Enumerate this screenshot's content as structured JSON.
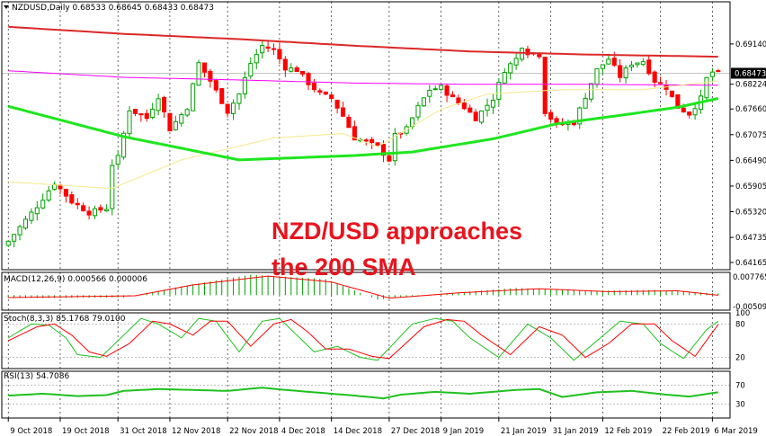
{
  "chart_data": [
    {
      "type": "candlestick",
      "header": "NZDUSD,Daily  0.68533 0.68645 0.68433 0.68473",
      "annotation": [
        "NZD/USD approaches",
        "the 200 SMA"
      ],
      "ylim": [
        0.64,
        0.701
      ],
      "y_ticks": [
        "0.69140",
        "0.68224",
        "0.67660",
        "0.67075",
        "0.66490",
        "0.65905",
        "0.65320",
        "0.64735",
        "0.64165"
      ],
      "current_price": "0.68473",
      "x_tick_labels": [
        "9 Oct 2018",
        "19 Oct 2018",
        "31 Oct 2018",
        "12 Nov 2018",
        "22 Nov 2018",
        "4 Dec 2018",
        "14 Dec 2018",
        "27 Dec 2018",
        "9 Jan 2019",
        "21 Jan 2019",
        "31 Jan 2019",
        "12 Feb 2019",
        "22 Feb 2019",
        "6 Mar 2019"
      ],
      "close_anchors": [
        [
          0,
          0.6465
        ],
        [
          5,
          0.6545
        ],
        [
          8,
          0.6598
        ],
        [
          11,
          0.6555
        ],
        [
          14,
          0.653
        ],
        [
          17,
          0.654
        ],
        [
          18,
          0.664
        ],
        [
          19,
          0.6655
        ],
        [
          21,
          0.6765
        ],
        [
          24,
          0.6745
        ],
        [
          26,
          0.6795
        ],
        [
          28,
          0.672
        ],
        [
          31,
          0.677
        ],
        [
          33,
          0.687
        ],
        [
          35,
          0.683
        ],
        [
          38,
          0.676
        ],
        [
          40,
          0.68
        ],
        [
          42,
          0.687
        ],
        [
          44,
          0.691
        ],
        [
          46,
          0.69
        ],
        [
          48,
          0.686
        ],
        [
          50,
          0.6855
        ],
        [
          52,
          0.6825
        ],
        [
          54,
          0.68
        ],
        [
          56,
          0.679
        ],
        [
          58,
          0.675
        ],
        [
          60,
          0.67
        ],
        [
          62,
          0.669
        ],
        [
          64,
          0.668
        ],
        [
          66,
          0.665
        ],
        [
          67,
          0.6705
        ],
        [
          69,
          0.672
        ],
        [
          71,
          0.677
        ],
        [
          73,
          0.681
        ],
        [
          75,
          0.6815
        ],
        [
          77,
          0.679
        ],
        [
          79,
          0.677
        ],
        [
          81,
          0.6745
        ],
        [
          84,
          0.679
        ],
        [
          86,
          0.6855
        ],
        [
          88,
          0.688
        ],
        [
          89,
          0.691
        ],
        [
          90,
          0.6895
        ],
        [
          92,
          0.689
        ],
        [
          93,
          0.676
        ],
        [
          95,
          0.673
        ],
        [
          98,
          0.6735
        ],
        [
          100,
          0.6795
        ],
        [
          102,
          0.6855
        ],
        [
          104,
          0.688
        ],
        [
          106,
          0.684
        ],
        [
          108,
          0.687
        ],
        [
          110,
          0.6875
        ],
        [
          112,
          0.683
        ],
        [
          114,
          0.6815
        ],
        [
          116,
          0.677
        ],
        [
          118,
          0.6755
        ],
        [
          120,
          0.679
        ],
        [
          121,
          0.6835
        ],
        [
          122,
          0.685
        ],
        [
          123,
          0.6847
        ]
      ],
      "sma_200": [
        [
          0,
          0.6853
        ],
        [
          20,
          0.6838
        ],
        [
          40,
          0.6832
        ],
        [
          60,
          0.6825
        ],
        [
          80,
          0.6822
        ],
        [
          100,
          0.6822
        ],
        [
          123,
          0.682
        ]
      ],
      "sma_100": [
        [
          0,
          0.6953
        ],
        [
          20,
          0.6937
        ],
        [
          40,
          0.6925
        ],
        [
          60,
          0.691
        ],
        [
          80,
          0.6897
        ],
        [
          100,
          0.689
        ],
        [
          123,
          0.6885
        ]
      ],
      "sma_50": [
        [
          0,
          0.66
        ],
        [
          18,
          0.6585
        ],
        [
          30,
          0.665
        ],
        [
          46,
          0.67
        ],
        [
          58,
          0.671
        ],
        [
          64,
          0.668
        ],
        [
          75,
          0.6765
        ],
        [
          83,
          0.68
        ],
        [
          96,
          0.681
        ],
        [
          110,
          0.681
        ],
        [
          123,
          0.683
        ]
      ],
      "sma_20": [
        [
          0,
          0.6772
        ],
        [
          20,
          0.6703
        ],
        [
          40,
          0.665
        ],
        [
          60,
          0.666
        ],
        [
          70,
          0.6668
        ],
        [
          84,
          0.6698
        ],
        [
          95,
          0.6732
        ],
        [
          108,
          0.6755
        ],
        [
          116,
          0.677
        ],
        [
          123,
          0.679
        ]
      ],
      "colors": {
        "bull": "#00a000",
        "bear": "#ff0000",
        "sma_200": "#ff00ff",
        "sma_100": "#dc2828",
        "sma_50": "#f5e88c",
        "sma_20": "#1ee61e"
      }
    },
    {
      "type": "macd",
      "header": "MACD(12,26,9) 0.000566 0.000006",
      "y_ticks": [
        "0.007765",
        "-0.005092"
      ],
      "histogram_anchors": [
        [
          0,
          -0.001
        ],
        [
          20,
          -0.0008
        ],
        [
          30,
          0.003
        ],
        [
          42,
          0.007
        ],
        [
          55,
          0.0055
        ],
        [
          64,
          -0.0015
        ],
        [
          75,
          0.0005
        ],
        [
          88,
          0.0025
        ],
        [
          100,
          0.0015
        ],
        [
          112,
          0.0018
        ],
        [
          123,
          0.0006
        ]
      ],
      "signal_anchors": [
        [
          0,
          -0.0008
        ],
        [
          22,
          -0.0002
        ],
        [
          32,
          0.0035
        ],
        [
          45,
          0.0065
        ],
        [
          56,
          0.0045
        ],
        [
          66,
          -0.001
        ],
        [
          78,
          0.0008
        ],
        [
          92,
          0.0022
        ],
        [
          104,
          0.0012
        ],
        [
          116,
          0.0015
        ],
        [
          123,
          0.0
        ]
      ]
    },
    {
      "type": "stochastic",
      "header": "Stoch(8,3,3) 85.1768 79.0100",
      "y_ticks": [
        "100",
        "80",
        "20",
        "0"
      ],
      "k_anchors": [
        [
          0,
          55
        ],
        [
          4,
          80
        ],
        [
          7,
          78
        ],
        [
          10,
          55
        ],
        [
          12,
          25
        ],
        [
          16,
          20
        ],
        [
          19,
          50
        ],
        [
          23,
          90
        ],
        [
          26,
          80
        ],
        [
          30,
          55
        ],
        [
          33,
          90
        ],
        [
          36,
          85
        ],
        [
          40,
          30
        ],
        [
          44,
          85
        ],
        [
          47,
          90
        ],
        [
          50,
          60
        ],
        [
          53,
          30
        ],
        [
          57,
          40
        ],
        [
          61,
          20
        ],
        [
          64,
          15
        ],
        [
          70,
          80
        ],
        [
          74,
          90
        ],
        [
          77,
          85
        ],
        [
          80,
          55
        ],
        [
          85,
          20
        ],
        [
          90,
          80
        ],
        [
          94,
          55
        ],
        [
          98,
          15
        ],
        [
          102,
          50
        ],
        [
          106,
          85
        ],
        [
          110,
          80
        ],
        [
          113,
          45
        ],
        [
          117,
          18
        ],
        [
          121,
          70
        ],
        [
          123,
          85
        ]
      ],
      "d_anchors": [
        [
          0,
          50
        ],
        [
          5,
          75
        ],
        [
          8,
          80
        ],
        [
          11,
          60
        ],
        [
          14,
          30
        ],
        [
          17,
          22
        ],
        [
          21,
          45
        ],
        [
          25,
          85
        ],
        [
          28,
          80
        ],
        [
          32,
          60
        ],
        [
          35,
          85
        ],
        [
          38,
          85
        ],
        [
          42,
          40
        ],
        [
          46,
          80
        ],
        [
          49,
          88
        ],
        [
          52,
          65
        ],
        [
          55,
          35
        ],
        [
          59,
          35
        ],
        [
          63,
          22
        ],
        [
          66,
          18
        ],
        [
          72,
          75
        ],
        [
          76,
          88
        ],
        [
          79,
          85
        ],
        [
          82,
          60
        ],
        [
          87,
          25
        ],
        [
          92,
          75
        ],
        [
          96,
          60
        ],
        [
          100,
          20
        ],
        [
          104,
          45
        ],
        [
          108,
          80
        ],
        [
          112,
          80
        ],
        [
          115,
          50
        ],
        [
          119,
          22
        ],
        [
          122,
          65
        ],
        [
          123,
          79
        ]
      ]
    },
    {
      "type": "rsi",
      "header": "RSI(13) 54.7086",
      "y_ticks": [
        "70",
        "30"
      ],
      "anchors": [
        [
          0,
          48
        ],
        [
          6,
          52
        ],
        [
          12,
          47
        ],
        [
          17,
          49
        ],
        [
          20,
          58
        ],
        [
          26,
          62
        ],
        [
          32,
          60
        ],
        [
          38,
          58
        ],
        [
          44,
          65
        ],
        [
          48,
          60
        ],
        [
          54,
          54
        ],
        [
          60,
          48
        ],
        [
          65,
          42
        ],
        [
          68,
          50
        ],
        [
          74,
          56
        ],
        [
          80,
          52
        ],
        [
          88,
          60
        ],
        [
          92,
          62
        ],
        [
          96,
          45
        ],
        [
          102,
          55
        ],
        [
          108,
          58
        ],
        [
          114,
          50
        ],
        [
          118,
          46
        ],
        [
          123,
          55
        ]
      ]
    }
  ]
}
